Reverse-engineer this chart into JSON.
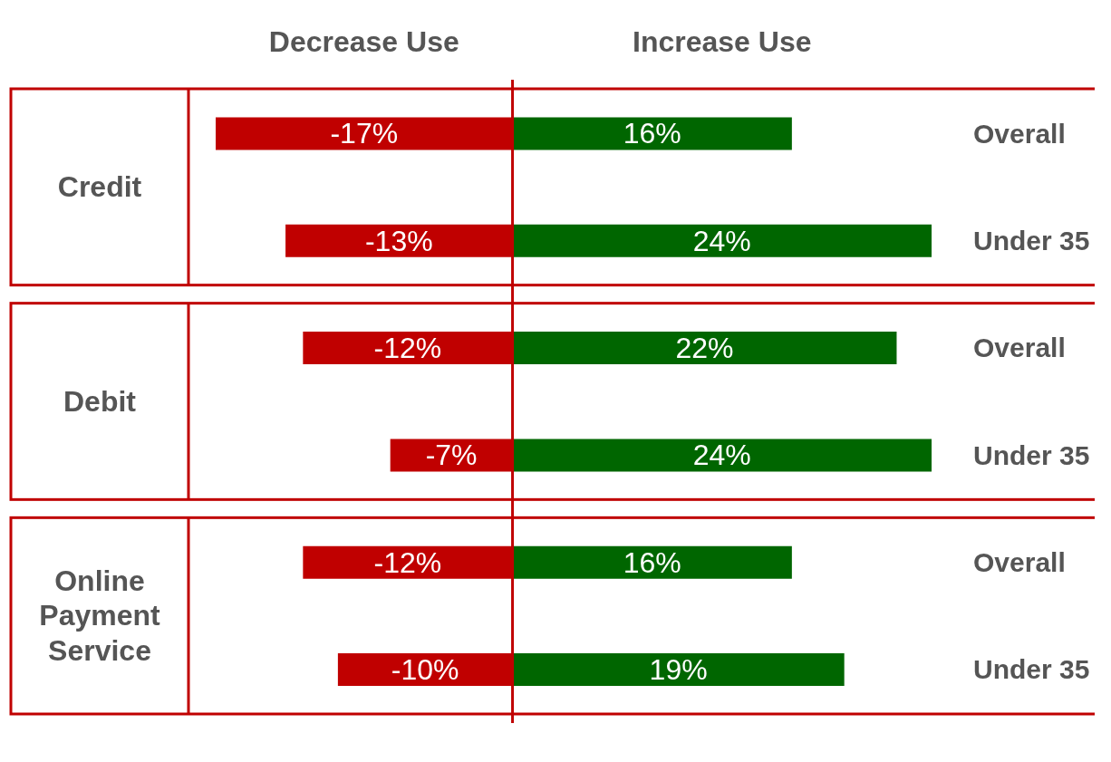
{
  "chart_data": {
    "type": "bar",
    "orientation": "horizontal",
    "stacked": true,
    "legend": "top",
    "categories": [
      "Overall",
      "Under 35",
      "Overall",
      "Under 35",
      "Overall",
      "Under 35"
    ],
    "series": [
      {
        "name": "Decrease Use",
        "color": "#c00000",
        "values": [
          -17,
          -13,
          -12,
          -7,
          -12,
          -10
        ],
        "value_labels": [
          "-17%",
          "-13%",
          "-12%",
          "-7%",
          "-12%",
          "-10%"
        ]
      },
      {
        "name": "Increase Use",
        "color": "#006600",
        "values": [
          16,
          24,
          22,
          24,
          16,
          19
        ],
        "value_labels": [
          "16%",
          "24%",
          "22%",
          "24%",
          "16%",
          "19%"
        ]
      }
    ],
    "annotations": [
      "Credit",
      "Debit",
      "Online Payment Service"
    ],
    "ref_lines": [
      {
        "axis": "x",
        "value": 0,
        "color": "#c00000"
      }
    ]
  }
}
